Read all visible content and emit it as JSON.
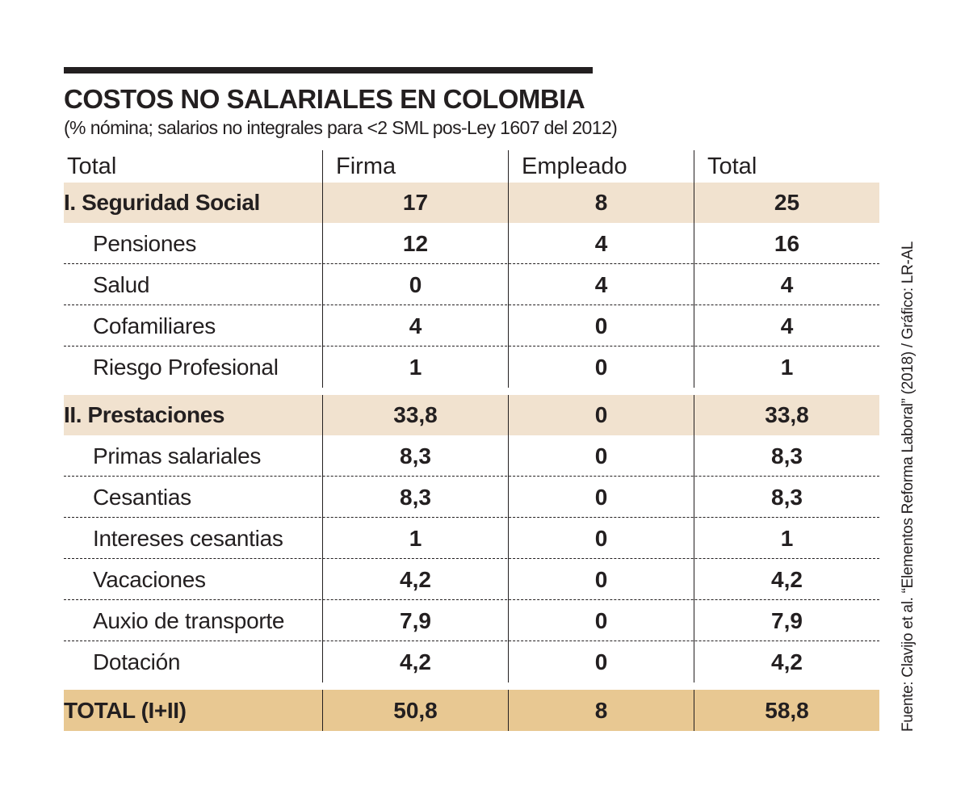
{
  "chart_data": {
    "type": "table",
    "title": "COSTOS NO SALARIALES EN COLOMBIA",
    "subtitle": "(% nómina; salarios no integrales para <2 SML pos-Ley 1607 del 2012)",
    "columns": [
      "Total",
      "Firma",
      "Empleado",
      "Total"
    ],
    "sections": [
      {
        "label": "I. Seguridad Social",
        "values": [
          "17",
          "8",
          "25"
        ],
        "rows": [
          {
            "label": "Pensiones",
            "values": [
              "12",
              "4",
              "16"
            ]
          },
          {
            "label": "Salud",
            "values": [
              "0",
              "4",
              "4"
            ]
          },
          {
            "label": "Cofamiliares",
            "values": [
              "4",
              "0",
              "4"
            ]
          },
          {
            "label": "Riesgo Profesional",
            "values": [
              "1",
              "0",
              "1"
            ]
          }
        ]
      },
      {
        "label": "II. Prestaciones",
        "values": [
          "33,8",
          "0",
          "33,8"
        ],
        "rows": [
          {
            "label": "Primas salariales",
            "values": [
              "8,3",
              "0",
              "8,3"
            ]
          },
          {
            "label": "Cesantias",
            "values": [
              "8,3",
              "0",
              "8,3"
            ]
          },
          {
            "label": "Intereses cesantias",
            "values": [
              "1",
              "0",
              "1"
            ]
          },
          {
            "label": "Vacaciones",
            "values": [
              "4,2",
              "0",
              "4,2"
            ]
          },
          {
            "label": "Auxio de transporte",
            "values": [
              "7,9",
              "0",
              "7,9"
            ]
          },
          {
            "label": "Dotación",
            "values": [
              "4,2",
              "0",
              "4,2"
            ]
          }
        ]
      }
    ],
    "total": {
      "label": "TOTAL (I+II)",
      "values": [
        "50,8",
        "8",
        "58,8"
      ]
    },
    "source": "Fuente: Clavijo et al. “Elementos Reforma Laboral” (2018) / Gráfico: LR-AL"
  },
  "colors": {
    "section_bg": "#f1e2cf",
    "total_bg": "#e8c892",
    "text": "#231f20"
  }
}
